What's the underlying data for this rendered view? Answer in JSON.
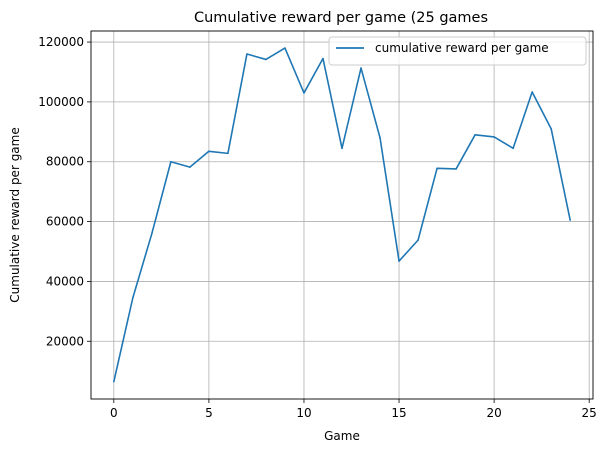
{
  "chart_data": {
    "type": "line",
    "title": "Cumulative reward per game (25 games",
    "xlabel": "Game",
    "ylabel": "Cumulative reward per game",
    "x_ticks": [
      0,
      5,
      10,
      15,
      20,
      25
    ],
    "y_ticks": [
      20000,
      40000,
      60000,
      80000,
      100000,
      120000
    ],
    "xlim": [
      -1.2,
      25.2
    ],
    "ylim": [
      700,
      123700
    ],
    "grid": true,
    "legend_position": "top-right",
    "series": [
      {
        "name": "cumulative reward per game",
        "color": "#1f77b4",
        "x": [
          0,
          1,
          2,
          3,
          4,
          5,
          6,
          7,
          8,
          9,
          10,
          11,
          12,
          13,
          14,
          15,
          16,
          17,
          18,
          19,
          20,
          21,
          22,
          23,
          24
        ],
        "y": [
          6500,
          34500,
          56000,
          80000,
          78200,
          83500,
          82800,
          116000,
          114200,
          118000,
          103000,
          114500,
          84500,
          111300,
          88000,
          46800,
          53800,
          77800,
          77600,
          89000,
          88300,
          84500,
          103300,
          91000,
          60500
        ]
      }
    ]
  }
}
